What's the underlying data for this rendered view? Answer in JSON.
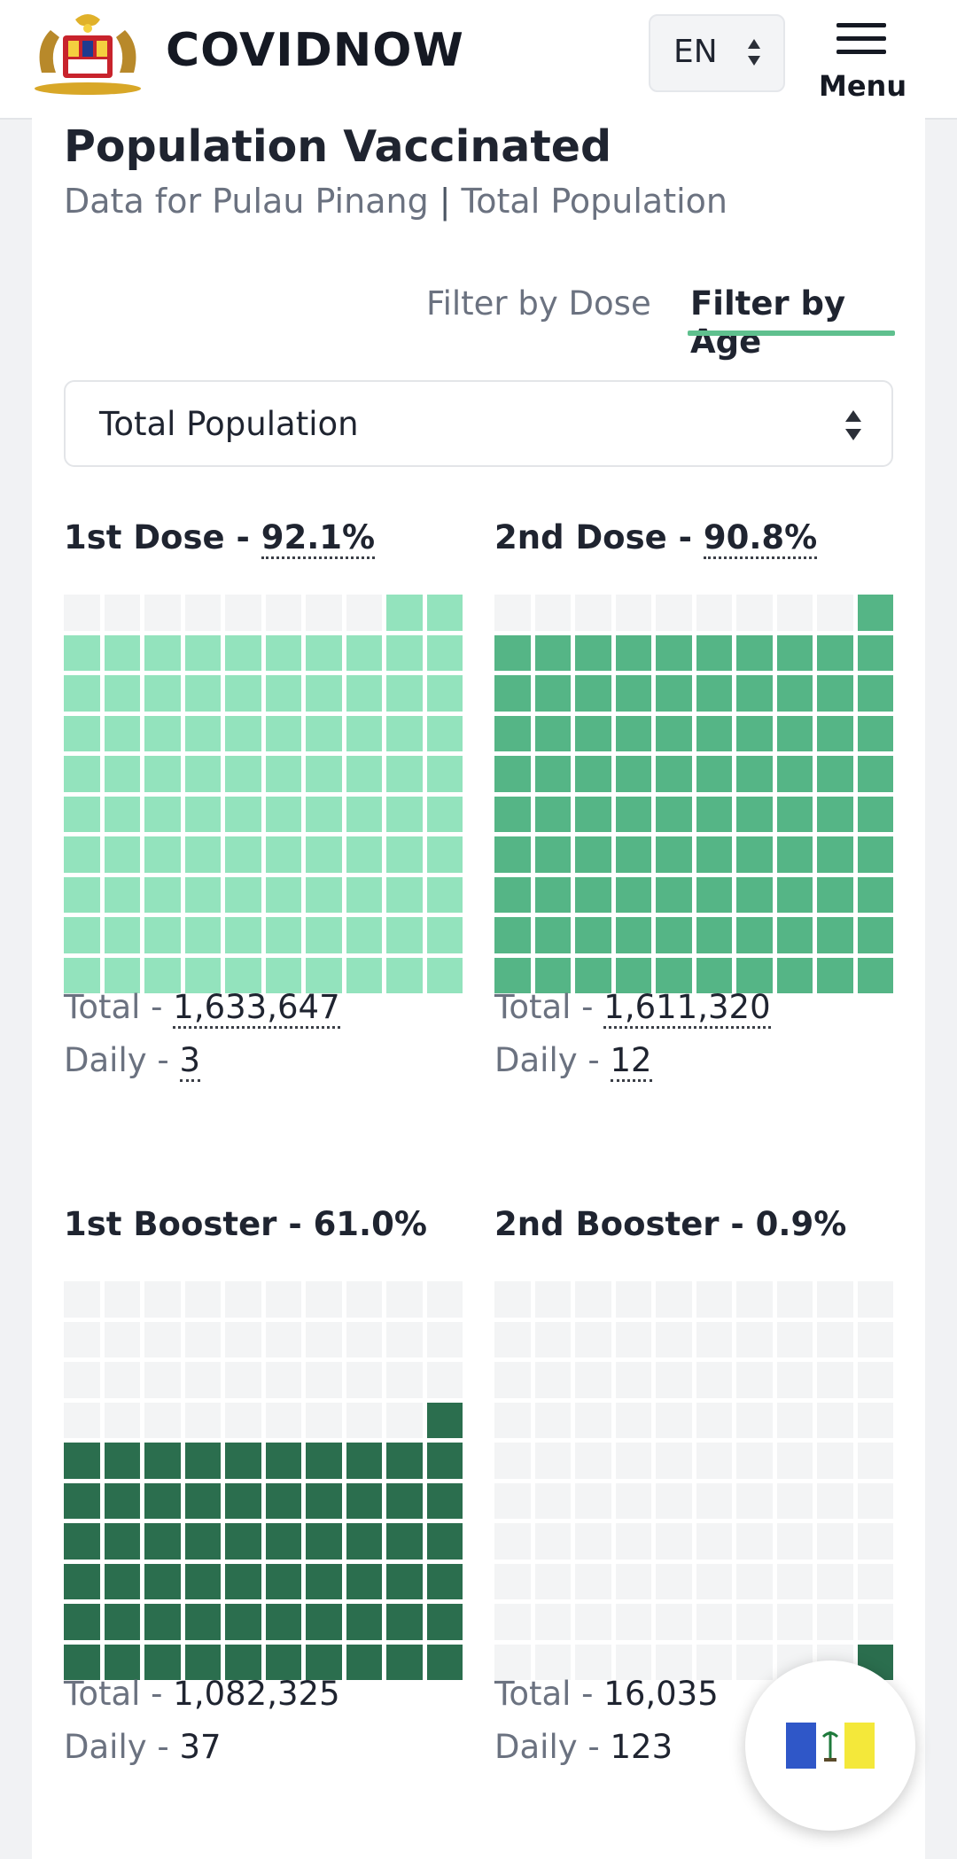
{
  "app": {
    "name": "COVIDNOW"
  },
  "header": {
    "language": "EN",
    "menu_label": "Menu"
  },
  "page": {
    "title": "Population Vaccinated",
    "subtitle_region": "Data for Pulau Pinang",
    "subtitle_separator": "|",
    "subtitle_population": "Total Population"
  },
  "filters": {
    "by_dose": "Filter by Dose",
    "by_age": "Filter by Age",
    "active": "by_age"
  },
  "population_select": {
    "value": "Total Population"
  },
  "colors": {
    "first_dose": "#93e3bd",
    "second_dose": "#55b586",
    "boosters": "#2b6e4e",
    "empty_cell": "#f3f4f5"
  },
  "panels": [
    {
      "label": "1st Dose",
      "separator": " - ",
      "percent": "92.1%",
      "percent_value": 92.1,
      "total_label": "Total",
      "total": "1,633,647",
      "daily_label": "Daily",
      "daily": "3",
      "color": "#93e3bd",
      "dotted": true
    },
    {
      "label": "2nd Dose",
      "separator": " - ",
      "percent": "90.8%",
      "percent_value": 90.8,
      "total_label": "Total",
      "total": "1,611,320",
      "daily_label": "Daily",
      "daily": "12",
      "color": "#55b586",
      "dotted": true
    },
    {
      "label": "1st Booster",
      "separator": " - ",
      "percent": "61.0%",
      "percent_value": 61.0,
      "total_label": "Total",
      "total": "1,082,325",
      "daily_label": "Daily",
      "daily": "37",
      "color": "#2b6e4e",
      "dotted": false
    },
    {
      "label": "2nd Booster",
      "separator": " - ",
      "percent": "0.9%",
      "percent_value": 0.9,
      "total_label": "Total",
      "total": "16,035",
      "daily_label": "Daily",
      "daily": "123",
      "color": "#2b6e4e",
      "dotted": false
    }
  ]
}
